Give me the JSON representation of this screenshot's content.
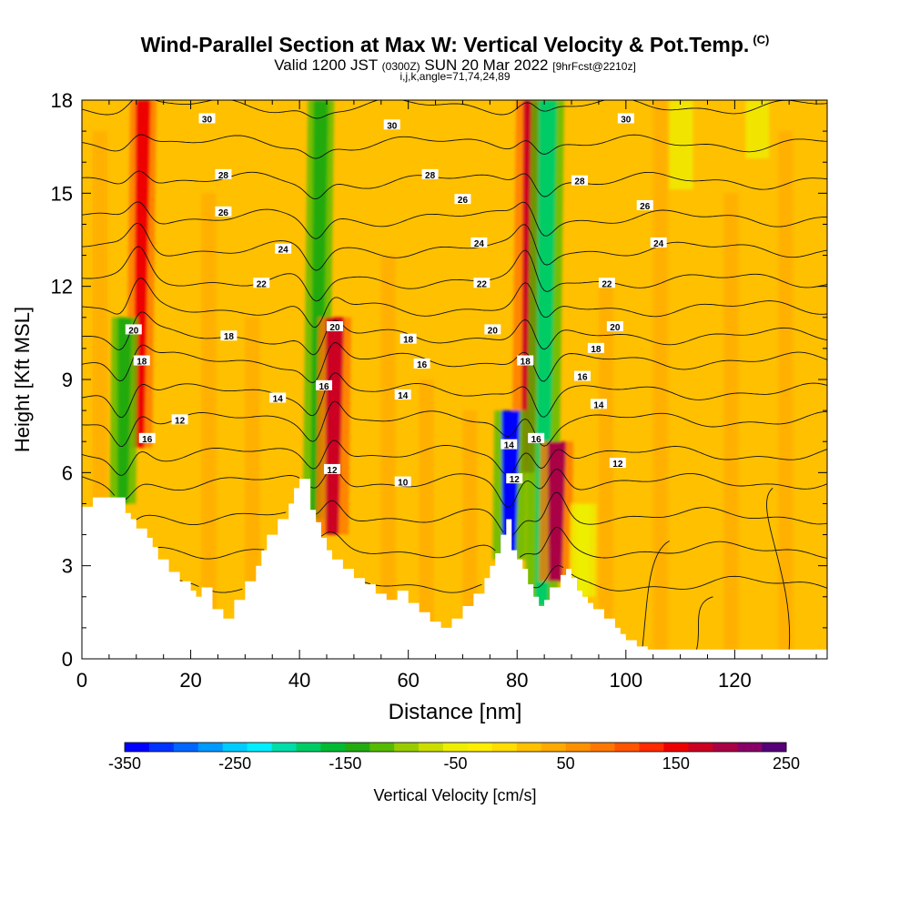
{
  "chart_data": {
    "type": "heatmap",
    "title": "Wind-Parallel Section at Max W: Vertical Velocity & Pot.Temp.",
    "title_suffix": "(C)",
    "subtitle": {
      "valid": "Valid 1200 JST",
      "utc": "(0300Z)",
      "date": "SUN 20 Mar 2022",
      "fcst": "[9hrFcst@2210z]"
    },
    "subtitle2": "i,j,k,angle=71,74,24,89",
    "xlabel": "Distance [nm]",
    "ylabel": "Height [Kft MSL]",
    "xlim": [
      0,
      137
    ],
    "ylim": [
      0,
      18
    ],
    "xticks": [
      0,
      20,
      40,
      60,
      80,
      100,
      120
    ],
    "yticks": [
      0,
      3,
      6,
      9,
      12,
      15,
      18
    ],
    "colorbar": {
      "label": "Vertical Velocity [cm/s]",
      "ticks": [
        -350,
        -250,
        -150,
        -50,
        50,
        150,
        250
      ],
      "range": [
        -350,
        250
      ],
      "colors": [
        "#0000ff",
        "#0033ff",
        "#0066ff",
        "#0099ff",
        "#00ccff",
        "#00eeff",
        "#00ddaa",
        "#00cc66",
        "#00bb33",
        "#22aa11",
        "#55bb00",
        "#99cc00",
        "#ccdd00",
        "#eeee00",
        "#ffee00",
        "#ffdd00",
        "#ffc000",
        "#ffaa00",
        "#ff9000",
        "#ff7700",
        "#ff5500",
        "#ff2a00",
        "#ee0000",
        "#cc0022",
        "#aa0044",
        "#880066",
        "#550077"
      ]
    },
    "features": [
      {
        "kind": "updraft",
        "x": 10.5,
        "top": 18,
        "bottom": 6.8,
        "w_cm_s": 150
      },
      {
        "kind": "downdraft",
        "x": 7.5,
        "top": 11,
        "bottom": 5,
        "w_cm_s": -150
      },
      {
        "kind": "downdraft",
        "x": 43,
        "top": 18,
        "bottom": 4.5,
        "w_cm_s": -150
      },
      {
        "kind": "updraft",
        "x": 46,
        "top": 11,
        "bottom": 4,
        "w_cm_s": 170
      },
      {
        "kind": "updraft",
        "x": 82,
        "top": 18,
        "bottom": 6,
        "w_cm_s": 170
      },
      {
        "kind": "downdraft",
        "x": 84.5,
        "top": 18,
        "bottom": 1.7,
        "w_cm_s": -180
      },
      {
        "kind": "downdraft",
        "x": 78.5,
        "top": 8,
        "bottom": 3.2,
        "w_cm_s": -330
      },
      {
        "kind": "updraft",
        "x": 87,
        "top": 7,
        "bottom": 2.5,
        "w_cm_s": 190
      },
      {
        "kind": "weak_downdraft",
        "x": 92,
        "top": 5,
        "bottom": 2,
        "w_cm_s": -60
      }
    ],
    "terrain": {
      "x": [
        0,
        2,
        2,
        8,
        8,
        9,
        9,
        10,
        10,
        12,
        12,
        13,
        13,
        14,
        14,
        16,
        16,
        18,
        18,
        20,
        20,
        21,
        21,
        22,
        22,
        24,
        24,
        26,
        26,
        28,
        28,
        30,
        30,
        32,
        32,
        33,
        33,
        34,
        34,
        36,
        36,
        38,
        38,
        39,
        39,
        40,
        40,
        42,
        42,
        43,
        43,
        44,
        44,
        45,
        45,
        46,
        46,
        48,
        48,
        50,
        50,
        52,
        52,
        54,
        54,
        56,
        56,
        58,
        58,
        60,
        60,
        62,
        62,
        64,
        64,
        66,
        66,
        68,
        68,
        70,
        70,
        72,
        72,
        74,
        74,
        75,
        75,
        76,
        76,
        77,
        77,
        78,
        78,
        79,
        79,
        80,
        80,
        81,
        81,
        82,
        82,
        83,
        83,
        84,
        84,
        85,
        85,
        86,
        86,
        88,
        88,
        89,
        89,
        90,
        90,
        91,
        91,
        92,
        92,
        93,
        93,
        94,
        94,
        96,
        96,
        98,
        98,
        99,
        99,
        100,
        100,
        102,
        102,
        104,
        104,
        137
      ],
      "y": [
        4.9,
        4.9,
        5.2,
        5.2,
        4.7,
        4.7,
        4.5,
        4.5,
        4.2,
        4.2,
        3.9,
        3.9,
        3.6,
        3.6,
        3.2,
        3.2,
        2.8,
        2.8,
        2.5,
        2.5,
        2.2,
        2.2,
        2.0,
        2.0,
        2.3,
        2.3,
        1.6,
        1.6,
        1.3,
        1.3,
        1.9,
        1.9,
        2.5,
        2.5,
        3.0,
        3.0,
        3.5,
        3.5,
        4.0,
        4.0,
        4.5,
        4.5,
        5.0,
        5.0,
        5.5,
        5.5,
        5.8,
        5.8,
        4.8,
        4.8,
        4.4,
        4.4,
        3.9,
        3.9,
        3.5,
        3.5,
        3.2,
        3.2,
        2.9,
        2.9,
        2.6,
        2.6,
        2.4,
        2.4,
        2.1,
        2.1,
        1.9,
        1.9,
        2.2,
        2.2,
        1.8,
        1.8,
        1.5,
        1.5,
        1.2,
        1.2,
        1.0,
        1.0,
        1.3,
        1.3,
        1.7,
        1.7,
        2.1,
        2.1,
        2.6,
        2.6,
        3.0,
        3.0,
        3.4,
        3.4,
        4.0,
        4.0,
        4.5,
        4.5,
        3.5,
        3.5,
        3.2,
        3.2,
        2.9,
        2.9,
        2.4,
        2.4,
        2.0,
        2.0,
        1.7,
        1.7,
        1.9,
        1.9,
        2.3,
        2.3,
        2.7,
        2.7,
        2.9,
        2.9,
        2.6,
        2.6,
        2.2,
        2.2,
        2.0,
        2.0,
        1.8,
        1.8,
        1.6,
        1.6,
        1.3,
        1.3,
        1.0,
        1.0,
        0.8,
        0.8,
        0.6,
        0.6,
        0.4,
        0.4,
        0.3,
        0.3
      ]
    },
    "theta_contours": {
      "levels": [
        2,
        4,
        6,
        8,
        10,
        12,
        14,
        16,
        18,
        20,
        22,
        24,
        26,
        28,
        30,
        32
      ],
      "base_height": [
        2.4,
        3.5,
        4.6,
        5.7,
        6.6,
        7.7,
        8.6,
        9.6,
        10.4,
        11.3,
        12.2,
        13.2,
        14.2,
        15.4,
        16.6,
        17.8
      ],
      "labels": [
        {
          "text": "20",
          "x": 9.5,
          "y": 10.6
        },
        {
          "text": "18",
          "x": 11,
          "y": 9.6
        },
        {
          "text": "16",
          "x": 12,
          "y": 7.1
        },
        {
          "text": "12",
          "x": 18,
          "y": 7.7
        },
        {
          "text": "30",
          "x": 23,
          "y": 17.4
        },
        {
          "text": "28",
          "x": 26,
          "y": 15.6
        },
        {
          "text": "26",
          "x": 26,
          "y": 14.4
        },
        {
          "text": "24",
          "x": 37,
          "y": 13.2
        },
        {
          "text": "22",
          "x": 33,
          "y": 12.1
        },
        {
          "text": "18",
          "x": 27,
          "y": 10.4
        },
        {
          "text": "14",
          "x": 36,
          "y": 8.4
        },
        {
          "text": "16",
          "x": 44.5,
          "y": 8.8
        },
        {
          "text": "20",
          "x": 46.5,
          "y": 10.7
        },
        {
          "text": "12",
          "x": 46,
          "y": 6.1
        },
        {
          "text": "30",
          "x": 57,
          "y": 17.2
        },
        {
          "text": "28",
          "x": 64,
          "y": 15.6
        },
        {
          "text": "26",
          "x": 70,
          "y": 14.8
        },
        {
          "text": "24",
          "x": 73,
          "y": 13.4
        },
        {
          "text": "22",
          "x": 73.5,
          "y": 12.1
        },
        {
          "text": "18",
          "x": 60,
          "y": 10.3
        },
        {
          "text": "16",
          "x": 62.5,
          "y": 9.5
        },
        {
          "text": "14",
          "x": 59,
          "y": 8.5
        },
        {
          "text": "10",
          "x": 59,
          "y": 5.7
        },
        {
          "text": "20",
          "x": 75.5,
          "y": 10.6
        },
        {
          "text": "18",
          "x": 81.5,
          "y": 9.6
        },
        {
          "text": "16",
          "x": 83.5,
          "y": 7.1
        },
        {
          "text": "14",
          "x": 78.5,
          "y": 6.9
        },
        {
          "text": "12",
          "x": 79.5,
          "y": 5.8
        },
        {
          "text": "30",
          "x": 100,
          "y": 17.4
        },
        {
          "text": "28",
          "x": 91.5,
          "y": 15.4
        },
        {
          "text": "26",
          "x": 103.5,
          "y": 14.6
        },
        {
          "text": "24",
          "x": 106,
          "y": 13.4
        },
        {
          "text": "22",
          "x": 96.5,
          "y": 12.1
        },
        {
          "text": "20",
          "x": 98,
          "y": 10.7
        },
        {
          "text": "18",
          "x": 94.5,
          "y": 10.0
        },
        {
          "text": "16",
          "x": 92,
          "y": 9.1
        },
        {
          "text": "14",
          "x": 95,
          "y": 8.2
        },
        {
          "text": "12",
          "x": 98.5,
          "y": 6.3
        }
      ]
    }
  }
}
